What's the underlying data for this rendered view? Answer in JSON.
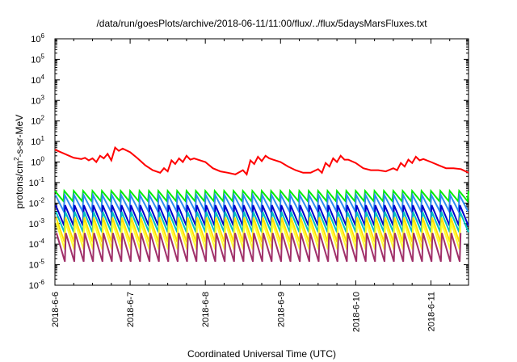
{
  "chart_data": {
    "type": "line",
    "title": "/data/run/goesPlots/archive/2018-06-11/11:00/flux/../flux/5daysMarsFluxes.txt",
    "xlabel": "Coordinated Universal Time (UTC)",
    "ylabel_parts": [
      "protons/cm",
      "2",
      "-s-sr-MeV"
    ],
    "yscale": "log",
    "ylim": [
      1e-06,
      1000000.0
    ],
    "xlim": [
      0,
      5.5
    ],
    "x_ticks": [
      {
        "x": 0,
        "label": "2018-6-6"
      },
      {
        "x": 1,
        "label": "2018-6-7"
      },
      {
        "x": 2,
        "label": "2018-6-8"
      },
      {
        "x": 3,
        "label": "2018-6-9"
      },
      {
        "x": 4,
        "label": "2018-6-10"
      },
      {
        "x": 5,
        "label": "2018-6-11"
      }
    ],
    "y_ticks": [
      {
        "mant": "10",
        "exp": "-6",
        "v": -6
      },
      {
        "mant": "10",
        "exp": "-5",
        "v": -5
      },
      {
        "mant": "10",
        "exp": "-4",
        "v": -4
      },
      {
        "mant": "10",
        "exp": "-3",
        "v": -3
      },
      {
        "mant": "10",
        "exp": "-2",
        "v": -2
      },
      {
        "mant": "10",
        "exp": "-1",
        "v": -1
      },
      {
        "mant": "10",
        "exp": "0",
        "v": 0
      },
      {
        "mant": "10",
        "exp": "1",
        "v": 1
      },
      {
        "mant": "10",
        "exp": "2",
        "v": 2
      },
      {
        "mant": "10",
        "exp": "3",
        "v": 3
      },
      {
        "mant": "10",
        "exp": "4",
        "v": 4
      },
      {
        "mant": "10",
        "exp": "5",
        "v": 5
      },
      {
        "mant": "10",
        "exp": "6",
        "v": 6
      }
    ],
    "series": [
      {
        "color": "#ff0000",
        "x": [
          0.0,
          0.25,
          0.3,
          0.35,
          0.4,
          0.45,
          0.5,
          0.55,
          0.6,
          0.65,
          0.7,
          0.75,
          0.8,
          0.85,
          0.9,
          1.0,
          1.1,
          1.2,
          1.3,
          1.4,
          1.45,
          1.5,
          1.55,
          1.6,
          1.65,
          1.7,
          1.75,
          1.8,
          1.85,
          2.0,
          2.1,
          2.2,
          2.3,
          2.4,
          2.5,
          2.55,
          2.6,
          2.65,
          2.7,
          2.75,
          2.8,
          2.85,
          2.9,
          3.0,
          3.1,
          3.2,
          3.3,
          3.4,
          3.5,
          3.55,
          3.6,
          3.65,
          3.7,
          3.75,
          3.8,
          3.85,
          3.9,
          4.0,
          4.1,
          4.2,
          4.3,
          4.4,
          4.5,
          4.55,
          4.6,
          4.65,
          4.7,
          4.75,
          4.8,
          4.85,
          4.9,
          5.0,
          5.1,
          5.2,
          5.3,
          5.4,
          5.5
        ],
        "y": [
          4.0,
          1.6,
          1.5,
          1.4,
          1.6,
          1.2,
          1.5,
          1.0,
          2.0,
          1.5,
          2.5,
          1.2,
          5.0,
          3.5,
          4.5,
          3.0,
          1.5,
          0.7,
          0.4,
          0.3,
          0.5,
          0.35,
          1.2,
          0.8,
          1.5,
          1.0,
          2.0,
          1.3,
          1.5,
          1.0,
          0.5,
          0.35,
          0.3,
          0.25,
          0.4,
          0.25,
          1.2,
          0.8,
          1.8,
          1.1,
          2.0,
          1.5,
          1.3,
          1.0,
          0.6,
          0.4,
          0.3,
          0.3,
          0.45,
          0.3,
          0.9,
          0.6,
          1.5,
          1.0,
          2.0,
          1.3,
          1.3,
          0.9,
          0.5,
          0.4,
          0.4,
          0.35,
          0.5,
          0.4,
          0.9,
          0.6,
          1.3,
          0.9,
          1.8,
          1.2,
          1.4,
          1.0,
          0.7,
          0.5,
          0.5,
          0.45,
          0.3
        ]
      },
      {
        "color": "#00ee00",
        "base": 0.022,
        "amp": 0.5,
        "phase": 0.0
      },
      {
        "color": "#2e8bf0",
        "base": 0.01,
        "amp": 0.8,
        "phase": 0.1
      },
      {
        "color": "#0000cc",
        "base": 0.0025,
        "amp": 1.0,
        "phase": 0.2
      },
      {
        "color": "#00c0c0",
        "base": 0.0012,
        "amp": 1.0,
        "phase": 0.25
      },
      {
        "color": "#ffe000",
        "base": 0.0005,
        "amp": 1.2,
        "phase": 0.3
      },
      {
        "color": "#ffff33",
        "base": 0.00025,
        "amp": 1.3,
        "phase": 0.35
      },
      {
        "color": "#a0306a",
        "base": 7e-05,
        "amp": 1.4,
        "phase": 0.4
      }
    ]
  }
}
